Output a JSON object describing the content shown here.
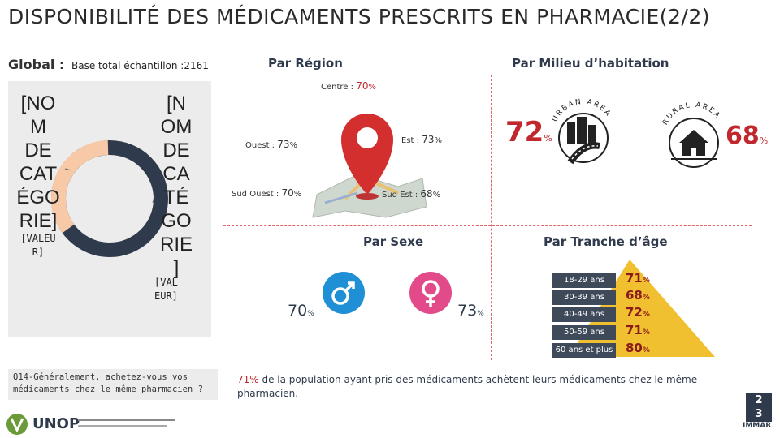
{
  "title": "DISPONIBILITÉ DES MÉDICAMENTS PRESCRITS EN PHARMACIE(2/2)",
  "global": {
    "label": "Global :",
    "base": "Base total échantillon :2161",
    "donut_label_left": "[NO\nM\nDE\nCAT\nÉGO\nRIE]",
    "donut_value_left": "[VALEU\nR]",
    "donut_label_right": "[N\nOM\nDE\nCA\nTÉ\nGO\nRIE\n]",
    "donut_value_right": "[VAL\nEUR]",
    "colors": {
      "main": "#2f3b4c",
      "secondary": "#f8c9a6"
    }
  },
  "question": "Q14-Généralement, achetez-vous vos médicaments chez le même pharmacien ?",
  "region": {
    "title": "Par Région",
    "items": [
      {
        "name": "Centre :",
        "value": "70",
        "suffix": "%"
      },
      {
        "name": "Ouest :",
        "value": "73",
        "suffix": "%"
      },
      {
        "name": "Est :",
        "value": "73",
        "suffix": "%"
      },
      {
        "name": "Sud Ouest :",
        "value": "70",
        "suffix": "%"
      },
      {
        "name": "Sud Est :",
        "value": "68",
        "suffix": "%"
      }
    ]
  },
  "habitat": {
    "title": "Par Milieu d’habitation",
    "urban": {
      "label": "URBAN AREA",
      "value": "72",
      "suffix": "%"
    },
    "rural": {
      "label": "RURAL AREA",
      "value": "68",
      "suffix": "%"
    }
  },
  "sexe": {
    "title": "Par Sexe",
    "male": {
      "value": "70",
      "suffix": "%"
    },
    "female": {
      "value": "73",
      "suffix": "%"
    }
  },
  "age": {
    "title": "Par Tranche d’âge",
    "items": [
      {
        "label": "18-29 ans",
        "value": "71",
        "suffix": "%"
      },
      {
        "label": "30-39 ans",
        "value": "68",
        "suffix": "%"
      },
      {
        "label": "40-49 ans",
        "value": "72",
        "suffix": "%"
      },
      {
        "label": "50-59 ans",
        "value": "71",
        "suffix": "%"
      },
      {
        "label": "60 ans et plus",
        "value": "80",
        "suffix": "%"
      }
    ]
  },
  "footer": {
    "highlight": "71%",
    "text": " de la population ayant pris des médicaments achètent leurs médicaments chez le même pharmacien."
  },
  "page_number": "2\n3",
  "logos": {
    "unop": "UNOP",
    "immar": "IMMAR"
  },
  "accent_colors": {
    "red": "#c0282d",
    "navy": "#2f3b4c",
    "pink": "#e24a8a",
    "blue": "#1f8fd6",
    "gold": "#e8b52e"
  }
}
